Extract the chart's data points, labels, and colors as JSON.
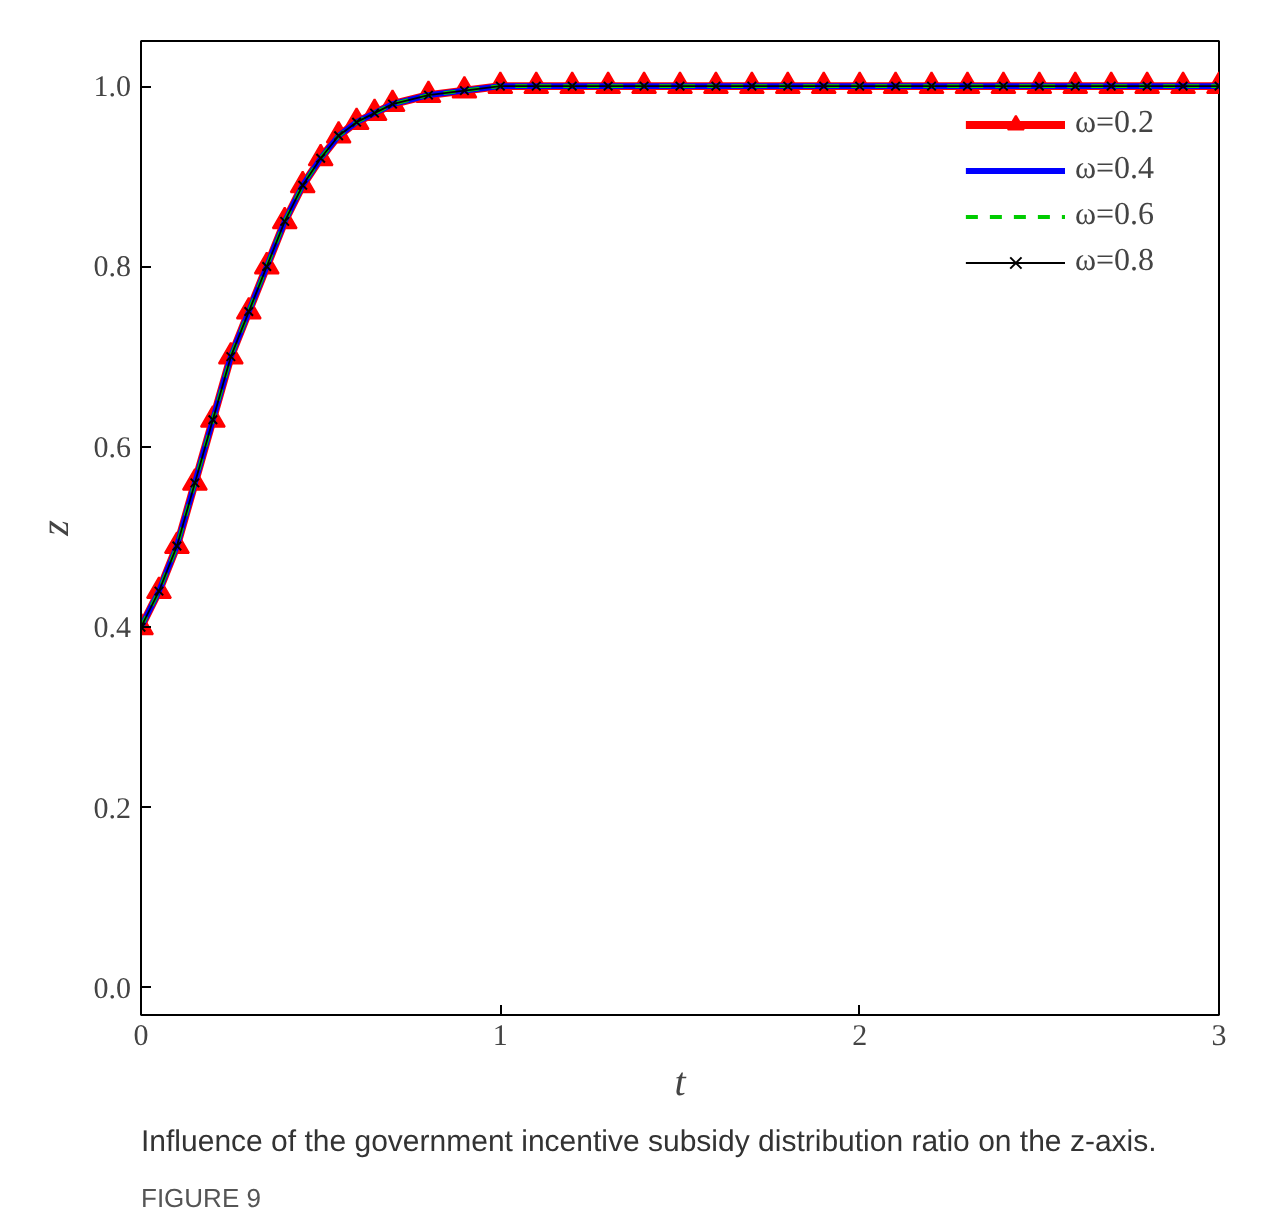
{
  "chart_data": {
    "type": "line",
    "title": "FIGURE 9",
    "subtitle": "Influence of the government incentive subsidy distribution ratio on the z-axis.",
    "xlabel": "t",
    "ylabel": "z",
    "x": [
      0,
      0.05,
      0.1,
      0.15,
      0.2,
      0.25,
      0.3,
      0.35,
      0.4,
      0.45,
      0.5,
      0.55,
      0.6,
      0.65,
      0.7,
      0.8,
      0.9,
      1.0,
      1.1,
      1.2,
      1.3,
      1.4,
      1.5,
      1.6,
      1.7,
      1.8,
      1.9,
      2.0,
      2.1,
      2.2,
      2.3,
      2.4,
      2.5,
      2.6,
      2.7,
      2.8,
      2.9,
      3.0
    ],
    "xlim": [
      0,
      3
    ],
    "xticks": [
      0,
      1,
      2,
      3
    ],
    "ylim": [
      -0.03,
      1.05
    ],
    "yticks": [
      {
        "value": 0,
        "label": "0.0"
      },
      {
        "value": 0.2,
        "label": "0.2"
      },
      {
        "value": 0.4,
        "label": "0.4"
      },
      {
        "value": 0.6,
        "label": "0.6"
      },
      {
        "value": 0.8,
        "label": "0.8"
      },
      {
        "value": 1,
        "label": "1.0"
      }
    ],
    "grid": false,
    "legend": "top right",
    "series": [
      {
        "name": "ω=0.2",
        "color": "#ff0000",
        "marker": "triangle",
        "line_style": "solid",
        "values": [
          0.4,
          0.44,
          0.49,
          0.56,
          0.63,
          0.7,
          0.75,
          0.8,
          0.85,
          0.89,
          0.92,
          0.945,
          0.96,
          0.97,
          0.98,
          0.99,
          0.995,
          1,
          1,
          1,
          1,
          1,
          1,
          1,
          1,
          1,
          1,
          1,
          1,
          1,
          1,
          1,
          1,
          1,
          1,
          1,
          1,
          1
        ]
      },
      {
        "name": "ω=0.4",
        "color": "#0000ff",
        "marker": "none",
        "line_style": "solid",
        "values": [
          0.4,
          0.44,
          0.49,
          0.56,
          0.63,
          0.7,
          0.75,
          0.8,
          0.85,
          0.89,
          0.92,
          0.945,
          0.96,
          0.97,
          0.98,
          0.99,
          0.995,
          1,
          1,
          1,
          1,
          1,
          1,
          1,
          1,
          1,
          1,
          1,
          1,
          1,
          1,
          1,
          1,
          1,
          1,
          1,
          1,
          1
        ]
      },
      {
        "name": "ω=0.6",
        "color": "#00cc00",
        "marker": "none",
        "line_style": "dashed",
        "values": [
          0.4,
          0.44,
          0.49,
          0.56,
          0.63,
          0.7,
          0.75,
          0.8,
          0.85,
          0.89,
          0.92,
          0.945,
          0.96,
          0.97,
          0.98,
          0.99,
          0.995,
          1,
          1,
          1,
          1,
          1,
          1,
          1,
          1,
          1,
          1,
          1,
          1,
          1,
          1,
          1,
          1,
          1,
          1,
          1,
          1,
          1
        ]
      },
      {
        "name": "ω=0.8",
        "color": "#000000",
        "marker": "cross",
        "line_style": "solid",
        "values": [
          0.4,
          0.44,
          0.49,
          0.56,
          0.63,
          0.7,
          0.75,
          0.8,
          0.85,
          0.89,
          0.92,
          0.945,
          0.96,
          0.97,
          0.98,
          0.99,
          0.995,
          1,
          1,
          1,
          1,
          1,
          1,
          1,
          1,
          1,
          1,
          1,
          1,
          1,
          1,
          1,
          1,
          1,
          1,
          1,
          1,
          1
        ]
      }
    ]
  }
}
